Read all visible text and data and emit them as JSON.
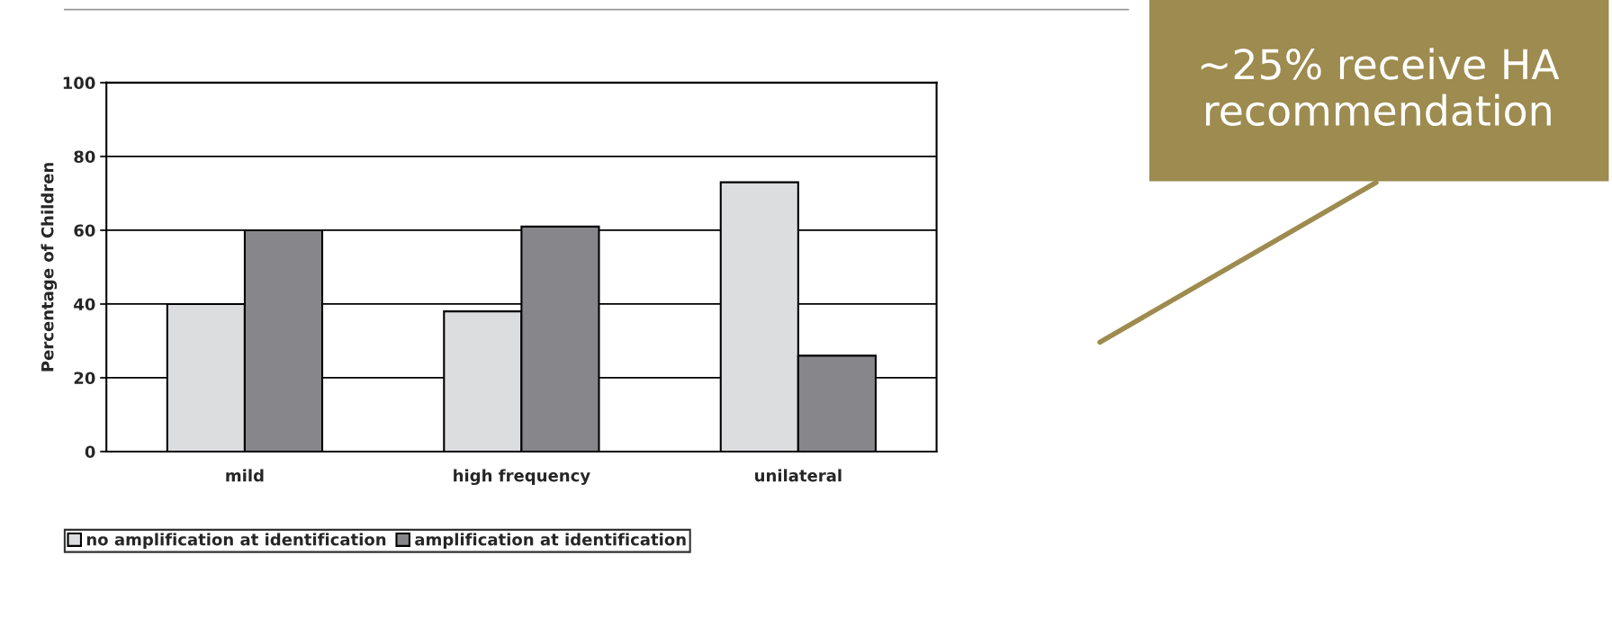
{
  "chart_data": {
    "type": "bar",
    "ylabel": "Percentage of Children",
    "categories": [
      "mild",
      "high frequency",
      "unilateral"
    ],
    "series": [
      {
        "name": "no amplification at identification",
        "color": "#dcdddf",
        "values": [
          40,
          38,
          73
        ]
      },
      {
        "name": "amplification at identification",
        "color": "#87878b",
        "values": [
          60,
          61,
          26
        ]
      }
    ],
    "ylim": [
      0,
      100
    ],
    "yticks": [
      0,
      20,
      40,
      60,
      80,
      100
    ],
    "grid": "y",
    "legend": "bottom left",
    "annotations": [
      "~25% receive HA recommendation"
    ]
  }
}
